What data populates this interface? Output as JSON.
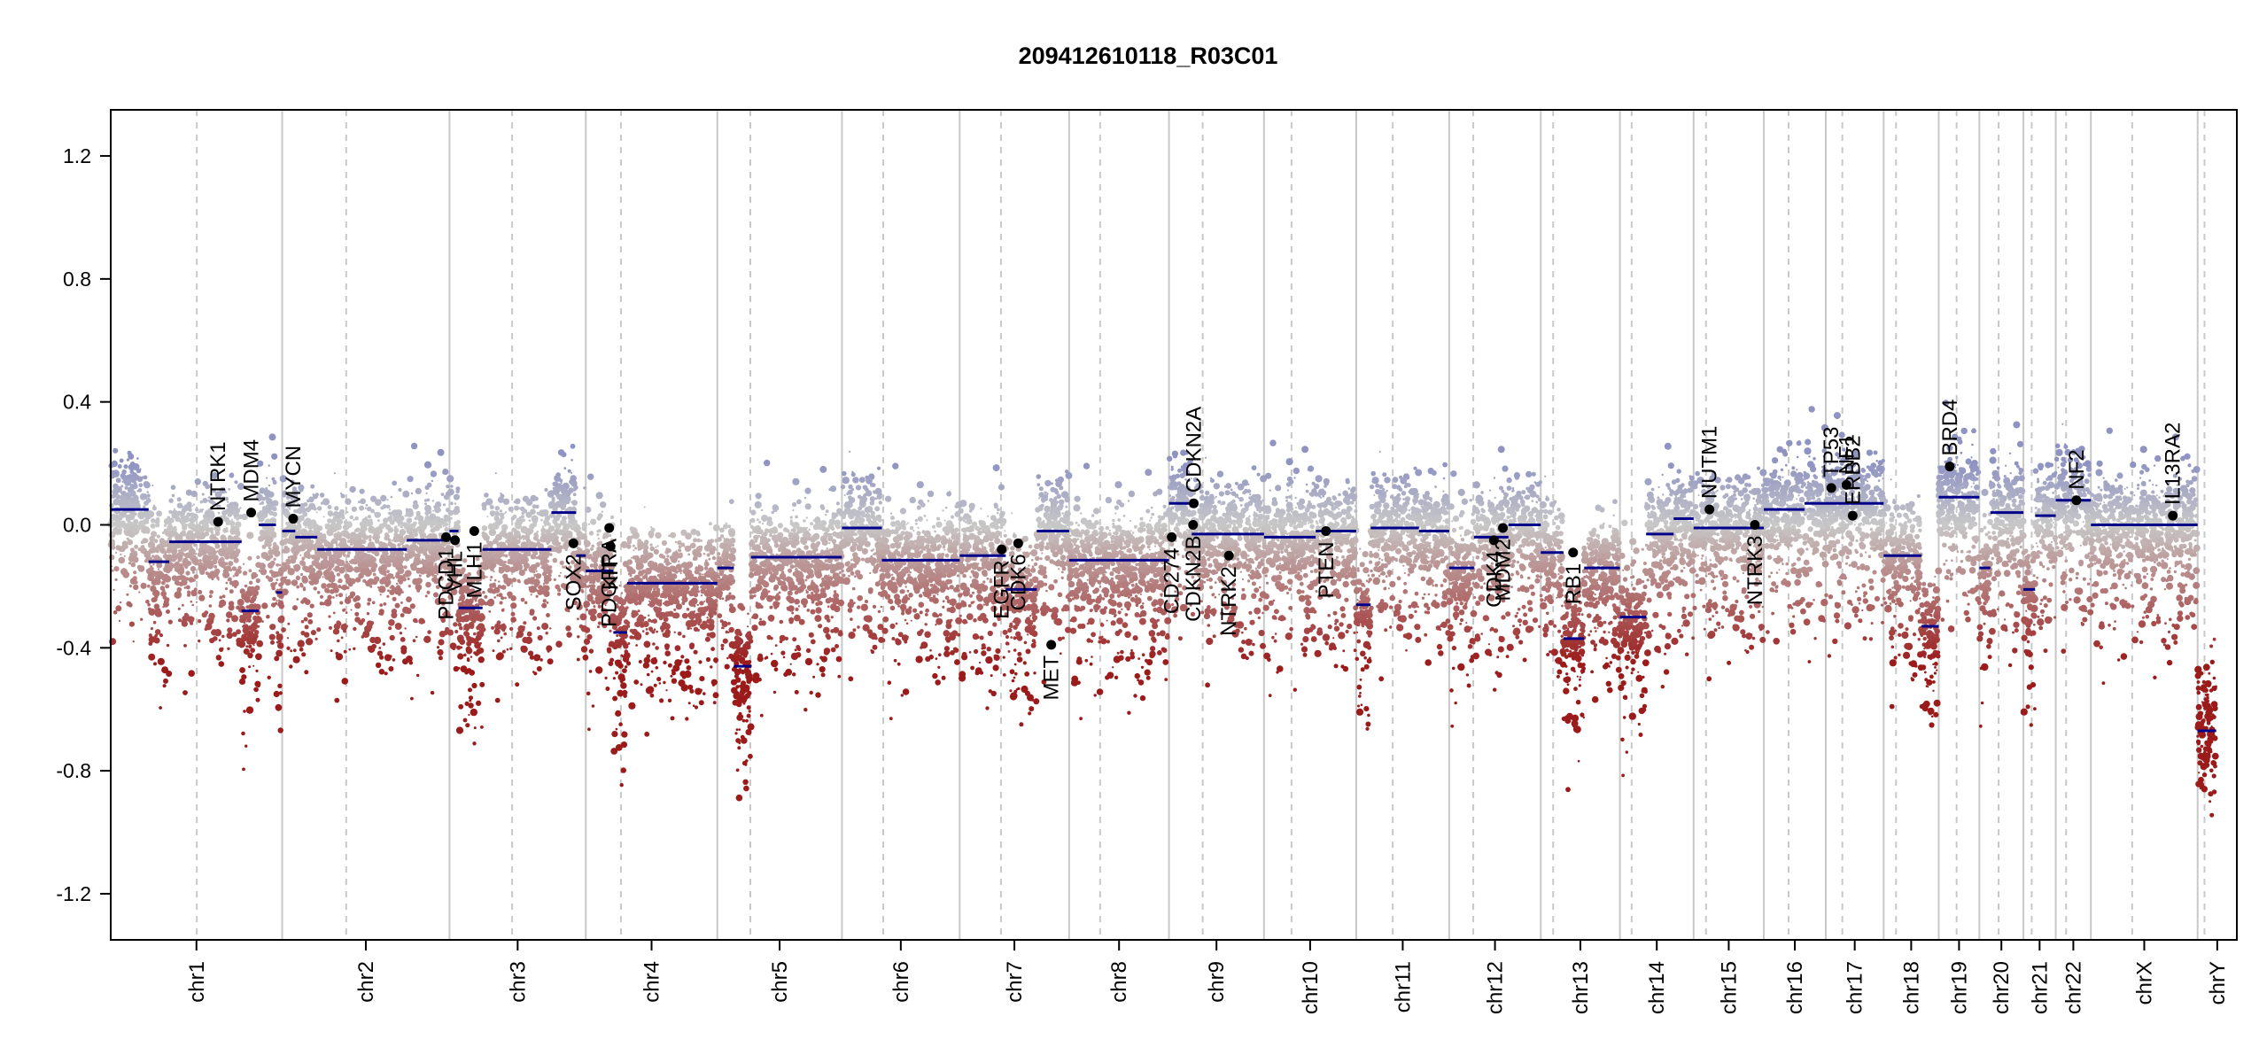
{
  "chart_data": {
    "type": "scatter",
    "title": "209412610118_R03C01",
    "xlabel": "",
    "ylabel": "",
    "ylim": [
      -1.35,
      1.35
    ],
    "yticks": [
      -1.2,
      -0.8,
      -0.4,
      0.0,
      0.4,
      0.8,
      1.2
    ],
    "ytick_labels": [
      "-1.2",
      "-0.8",
      "-0.4",
      "0.0",
      "0.4",
      "0.8",
      "1.2"
    ],
    "grid": false,
    "colors": {
      "gain": "#8f93c2",
      "neutral": "#c8c8c8",
      "loss": "#9b1b1b",
      "segment": "#00008b",
      "gene_point": "#000000",
      "chrom_boundary": "#c8c8c8",
      "centromere": "#c8c8c8"
    },
    "chromosomes": [
      {
        "name": "chr1",
        "start": 0,
        "end": 249,
        "centromere": 125
      },
      {
        "name": "chr2",
        "start": 249,
        "end": 492,
        "centromere": 342
      },
      {
        "name": "chr3",
        "start": 492,
        "end": 690,
        "centromere": 583
      },
      {
        "name": "chr4",
        "start": 690,
        "end": 881,
        "centromere": 741
      },
      {
        "name": "chr5",
        "start": 881,
        "end": 1062,
        "centromere": 929
      },
      {
        "name": "chr6",
        "start": 1062,
        "end": 1233,
        "centromere": 1122
      },
      {
        "name": "chr7",
        "start": 1233,
        "end": 1392,
        "centromere": 1293
      },
      {
        "name": "chr8",
        "start": 1392,
        "end": 1537,
        "centromere": 1437
      },
      {
        "name": "chr9",
        "start": 1537,
        "end": 1675,
        "centromere": 1586
      },
      {
        "name": "chr10",
        "start": 1675,
        "end": 1809,
        "centromere": 1715
      },
      {
        "name": "chr11",
        "start": 1809,
        "end": 1944,
        "centromere": 1862
      },
      {
        "name": "chr12",
        "start": 1944,
        "end": 2077,
        "centromere": 1979
      },
      {
        "name": "chr13",
        "start": 2077,
        "end": 2192,
        "centromere": 2095
      },
      {
        "name": "chr14",
        "start": 2192,
        "end": 2299,
        "centromere": 2209
      },
      {
        "name": "chr15",
        "start": 2299,
        "end": 2401,
        "centromere": 2317
      },
      {
        "name": "chr16",
        "start": 2401,
        "end": 2491,
        "centromere": 2437
      },
      {
        "name": "chr17",
        "start": 2491,
        "end": 2575,
        "centromere": 2515
      },
      {
        "name": "chr18",
        "start": 2575,
        "end": 2655,
        "centromere": 2593
      },
      {
        "name": "chr19",
        "start": 2655,
        "end": 2714,
        "centromere": 2681
      },
      {
        "name": "chr20",
        "start": 2714,
        "end": 2778,
        "centromere": 2742
      },
      {
        "name": "chr21",
        "start": 2778,
        "end": 2825,
        "centromere": 2790
      },
      {
        "name": "chr22",
        "start": 2825,
        "end": 2876,
        "centromere": 2840
      },
      {
        "name": "chrX",
        "start": 2876,
        "end": 3031,
        "centromere": 2936
      },
      {
        "name": "chrY",
        "start": 3031,
        "end": 3088,
        "centromere": 3041
      }
    ],
    "segments": [
      {
        "x0": 0,
        "x1": 55,
        "y": 0.05
      },
      {
        "x0": 55,
        "x1": 85,
        "y": -0.12
      },
      {
        "x0": 85,
        "x1": 190,
        "y": -0.055
      },
      {
        "x0": 190,
        "x1": 215,
        "y": -0.28
      },
      {
        "x0": 215,
        "x1": 240,
        "y": 0.0
      },
      {
        "x0": 240,
        "x1": 249,
        "y": -0.22
      },
      {
        "x0": 249,
        "x1": 268,
        "y": -0.02
      },
      {
        "x0": 268,
        "x1": 300,
        "y": -0.04
      },
      {
        "x0": 300,
        "x1": 430,
        "y": -0.08
      },
      {
        "x0": 430,
        "x1": 492,
        "y": -0.05
      },
      {
        "x0": 492,
        "x1": 505,
        "y": -0.02
      },
      {
        "x0": 505,
        "x1": 540,
        "y": -0.27
      },
      {
        "x0": 540,
        "x1": 640,
        "y": -0.08
      },
      {
        "x0": 640,
        "x1": 676,
        "y": 0.04
      },
      {
        "x0": 676,
        "x1": 690,
        "y": -0.1
      },
      {
        "x0": 690,
        "x1": 730,
        "y": -0.15
      },
      {
        "x0": 730,
        "x1": 750,
        "y": -0.35
      },
      {
        "x0": 750,
        "x1": 881,
        "y": -0.19
      },
      {
        "x0": 881,
        "x1": 905,
        "y": -0.14
      },
      {
        "x0": 905,
        "x1": 930,
        "y": -0.46
      },
      {
        "x0": 930,
        "x1": 1062,
        "y": -0.105
      },
      {
        "x0": 1062,
        "x1": 1120,
        "y": -0.01
      },
      {
        "x0": 1120,
        "x1": 1233,
        "y": -0.115
      },
      {
        "x0": 1233,
        "x1": 1300,
        "y": -0.1
      },
      {
        "x0": 1300,
        "x1": 1345,
        "y": -0.21
      },
      {
        "x0": 1345,
        "x1": 1392,
        "y": -0.02
      },
      {
        "x0": 1392,
        "x1": 1537,
        "y": -0.115
      },
      {
        "x0": 1537,
        "x1": 1570,
        "y": 0.07
      },
      {
        "x0": 1570,
        "x1": 1675,
        "y": -0.03
      },
      {
        "x0": 1675,
        "x1": 1750,
        "y": -0.04
      },
      {
        "x0": 1750,
        "x1": 1809,
        "y": -0.02
      },
      {
        "x0": 1809,
        "x1": 1830,
        "y": -0.26
      },
      {
        "x0": 1830,
        "x1": 1900,
        "y": -0.01
      },
      {
        "x0": 1900,
        "x1": 1944,
        "y": -0.02
      },
      {
        "x0": 1944,
        "x1": 1980,
        "y": -0.14
      },
      {
        "x0": 1980,
        "x1": 2030,
        "y": -0.04
      },
      {
        "x0": 2030,
        "x1": 2077,
        "y": 0.0
      },
      {
        "x0": 2077,
        "x1": 2110,
        "y": -0.09
      },
      {
        "x0": 2110,
        "x1": 2140,
        "y": -0.37
      },
      {
        "x0": 2140,
        "x1": 2192,
        "y": -0.14
      },
      {
        "x0": 2192,
        "x1": 2230,
        "y": -0.3
      },
      {
        "x0": 2230,
        "x1": 2270,
        "y": -0.03
      },
      {
        "x0": 2270,
        "x1": 2299,
        "y": 0.02
      },
      {
        "x0": 2299,
        "x1": 2401,
        "y": -0.01
      },
      {
        "x0": 2401,
        "x1": 2460,
        "y": 0.05
      },
      {
        "x0": 2460,
        "x1": 2520,
        "y": 0.07
      },
      {
        "x0": 2520,
        "x1": 2575,
        "y": 0.07
      },
      {
        "x0": 2575,
        "x1": 2630,
        "y": -0.1
      },
      {
        "x0": 2630,
        "x1": 2655,
        "y": -0.33
      },
      {
        "x0": 2655,
        "x1": 2714,
        "y": 0.09
      },
      {
        "x0": 2714,
        "x1": 2730,
        "y": -0.14
      },
      {
        "x0": 2730,
        "x1": 2778,
        "y": 0.04
      },
      {
        "x0": 2778,
        "x1": 2795,
        "y": -0.21
      },
      {
        "x0": 2795,
        "x1": 2825,
        "y": 0.03
      },
      {
        "x0": 2825,
        "x1": 2876,
        "y": 0.08
      },
      {
        "x0": 2876,
        "x1": 3031,
        "y": 0.0
      },
      {
        "x0": 3031,
        "x1": 3058,
        "y": -0.67
      }
    ],
    "genes": [
      {
        "name": "NTRK1",
        "x": 156,
        "y": 0.01,
        "label_side": "up"
      },
      {
        "name": "MDM4",
        "x": 204,
        "y": 0.04,
        "label_side": "up"
      },
      {
        "name": "MYCN",
        "x": 265,
        "y": 0.02,
        "label_side": "up"
      },
      {
        "name": "PDGFRA",
        "x": 724,
        "y": -0.01,
        "label_side": "down"
      },
      {
        "name": "PDCD1",
        "x": 487,
        "y": -0.04,
        "label_side": "down"
      },
      {
        "name": "VHL",
        "x": 500,
        "y": -0.05,
        "label_side": "down"
      },
      {
        "name": "MLH1",
        "x": 528,
        "y": -0.02,
        "label_side": "down"
      },
      {
        "name": "SOX2",
        "x": 672,
        "y": -0.06,
        "label_side": "down"
      },
      {
        "name": "KIT",
        "x": 726,
        "y": -0.07,
        "label_side": "down"
      },
      {
        "name": "CDK6",
        "x": 1318,
        "y": -0.06,
        "label_side": "down"
      },
      {
        "name": "EGFR",
        "x": 1294,
        "y": -0.08,
        "label_side": "down"
      },
      {
        "name": "MET",
        "x": 1366,
        "y": -0.39,
        "label_side": "down"
      },
      {
        "name": "CD274",
        "x": 1541,
        "y": -0.04,
        "label_side": "down"
      },
      {
        "name": "CDKN2A",
        "x": 1573,
        "y": 0.07,
        "label_side": "up"
      },
      {
        "name": "CDKN2B",
        "x": 1572,
        "y": 0.0,
        "label_side": "down"
      },
      {
        "name": "NTRK2",
        "x": 1624,
        "y": -0.1,
        "label_side": "down"
      },
      {
        "name": "PTEN",
        "x": 1765,
        "y": -0.02,
        "label_side": "down"
      },
      {
        "name": "CDK4",
        "x": 2009,
        "y": -0.05,
        "label_side": "down"
      },
      {
        "name": "MDM2",
        "x": 2022,
        "y": -0.01,
        "label_side": "down"
      },
      {
        "name": "RB1",
        "x": 2124,
        "y": -0.09,
        "label_side": "down"
      },
      {
        "name": "NUTM1",
        "x": 2322,
        "y": 0.05,
        "label_side": "up"
      },
      {
        "name": "NTRK3",
        "x": 2388,
        "y": 0.0,
        "label_side": "down"
      },
      {
        "name": "TP53",
        "x": 2499,
        "y": 0.12,
        "label_side": "up"
      },
      {
        "name": "NF1",
        "x": 2521,
        "y": 0.13,
        "label_side": "up"
      },
      {
        "name": "ERBB2",
        "x": 2530,
        "y": 0.03,
        "label_side": "up"
      },
      {
        "name": "BRD4",
        "x": 2671,
        "y": 0.19,
        "label_side": "up"
      },
      {
        "name": "NF2",
        "x": 2855,
        "y": 0.08,
        "label_side": "up"
      },
      {
        "name": "IL13RA2",
        "x": 2995,
        "y": 0.03,
        "label_side": "up"
      }
    ]
  }
}
